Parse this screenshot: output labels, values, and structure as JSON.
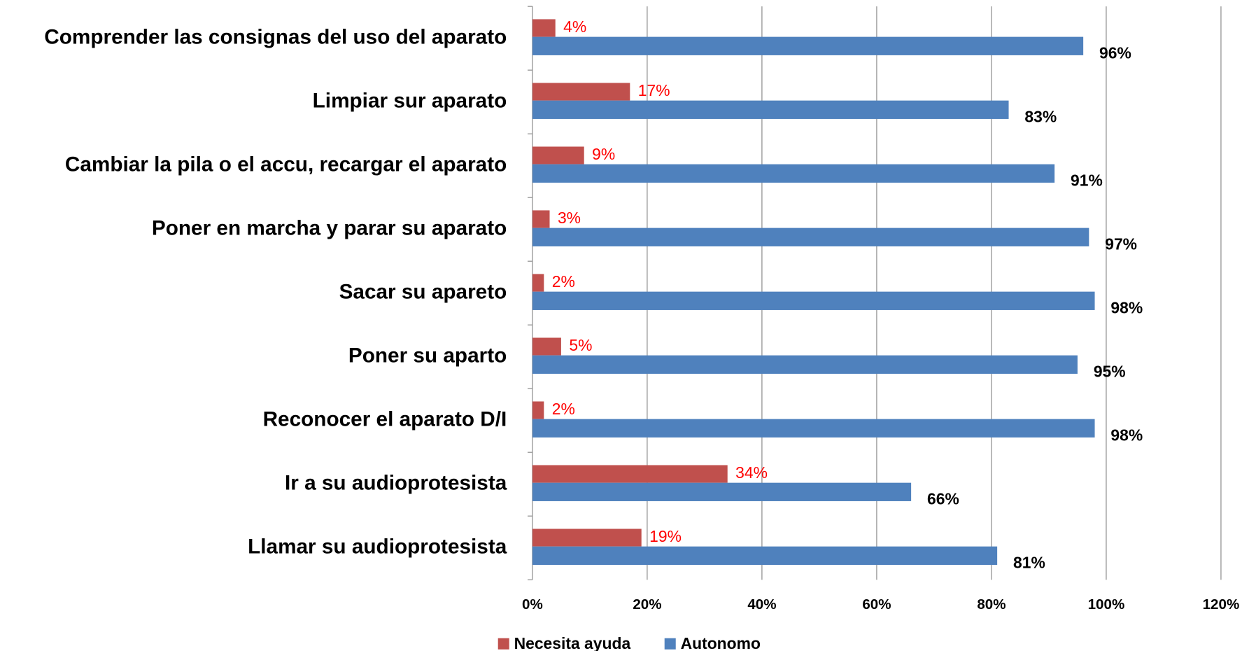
{
  "chart_data": {
    "type": "hbar",
    "categories": [
      "Comprender las consignas del uso del aparato",
      "Limpiar sur aparato",
      "Cambiar la pila o el accu, recargar el aparato",
      "Poner en marcha y parar su aparato",
      "Sacar su apareto",
      "Poner su aparto",
      "Reconocer el aparato D/I",
      "Ir a su audioprotesista",
      "Llamar su audioprotesista"
    ],
    "series": [
      {
        "name": "Necesita ayuda",
        "color": "#c0504d",
        "values": [
          4,
          17,
          9,
          3,
          2,
          5,
          2,
          34,
          19
        ],
        "value_labels": [
          "4%",
          "17%",
          "9%",
          "3%",
          "2%",
          "5%",
          "2%",
          "34%",
          "19%"
        ]
      },
      {
        "name": "Autonomo",
        "color": "#4f81bd",
        "values": [
          96,
          83,
          91,
          97,
          98,
          95,
          98,
          66,
          81
        ],
        "value_labels": [
          "96%",
          "83%",
          "91%",
          "97%",
          "98%",
          "95%",
          "98%",
          "66%",
          "81%"
        ]
      }
    ],
    "xlim": [
      0,
      120
    ],
    "xticks": [
      {
        "value": 0,
        "label": "0%"
      },
      {
        "value": 20,
        "label": "20%"
      },
      {
        "value": 40,
        "label": "40%"
      },
      {
        "value": 60,
        "label": "60%"
      },
      {
        "value": 80,
        "label": "80%"
      },
      {
        "value": 100,
        "label": "100%"
      },
      {
        "value": 120,
        "label": "120%"
      }
    ],
    "grid": true,
    "legend": "bottom"
  }
}
